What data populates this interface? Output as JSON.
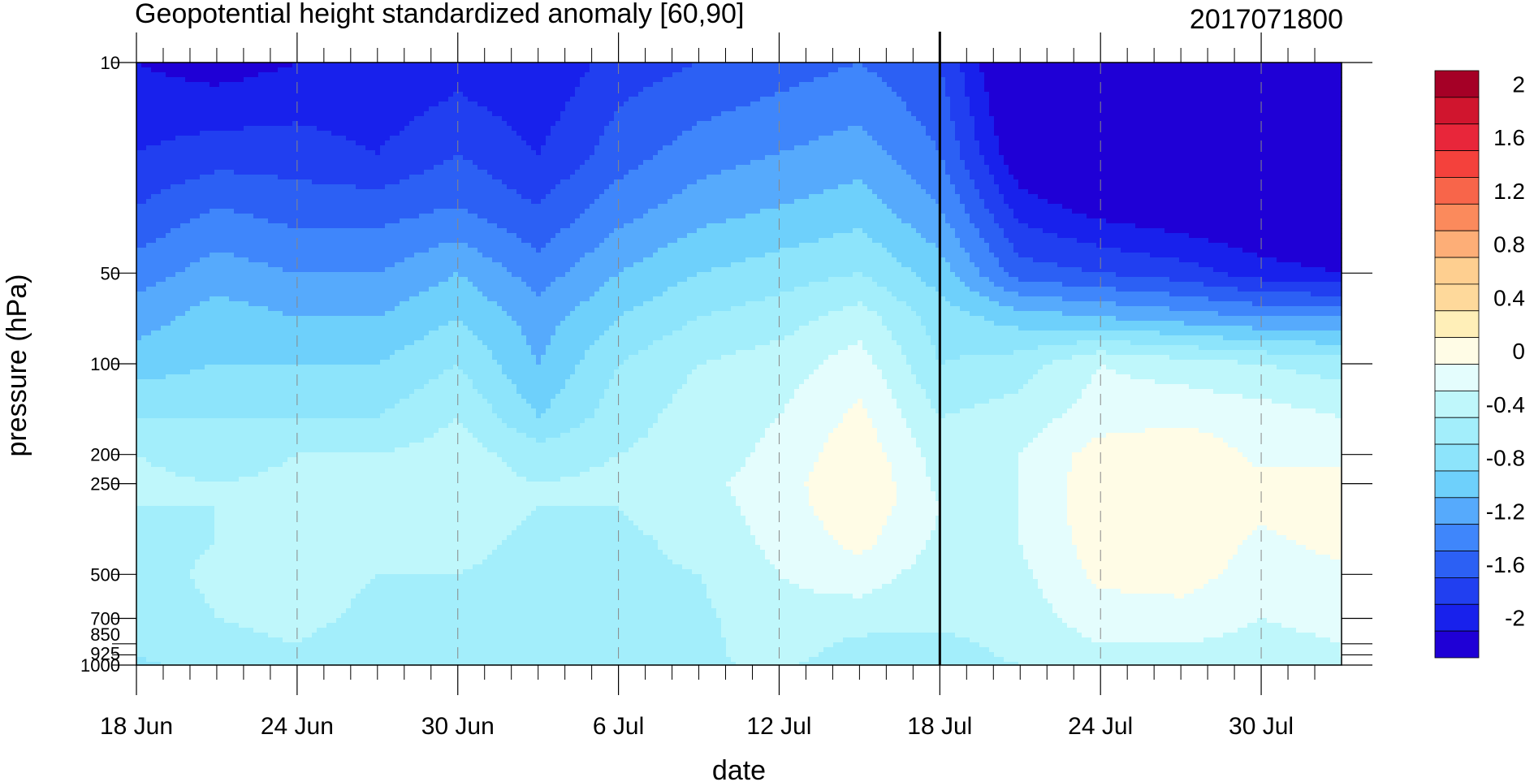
{
  "chart_data": {
    "type": "heatmap",
    "title": "Geopotential height standardized anomaly [60,90]",
    "subtitle": "2017071800",
    "xlabel": "date",
    "ylabel": "pressure (hPa)",
    "x_ticks": [
      "18 Jun",
      "24 Jun",
      "30 Jun",
      "6 Jul",
      "12 Jul",
      "18 Jul",
      "24 Jul",
      "30 Jul"
    ],
    "x_tick_days": [
      0,
      6,
      12,
      18,
      24,
      30,
      36,
      42
    ],
    "x_range_days": [
      0,
      45
    ],
    "forecast_start_day": 30,
    "y_scale": "log",
    "y_ticks": [
      "10",
      "50",
      "100",
      "200",
      "250",
      "500",
      "700",
      "850",
      "925",
      "1000"
    ],
    "y_tick_values": [
      10,
      50,
      100,
      200,
      250,
      500,
      700,
      850,
      925,
      1000
    ],
    "y_range": [
      1000,
      10
    ],
    "colorbar": {
      "labels": [
        "2",
        "1.6",
        "1.2",
        "0.8",
        "0.4",
        "0",
        "-0.4",
        "-0.8",
        "-1.2",
        "-1.6",
        "-2"
      ],
      "label_values": [
        2,
        1.6,
        1.2,
        0.8,
        0.4,
        0,
        -0.4,
        -0.8,
        -1.2,
        -1.6,
        -2
      ],
      "bins_top_to_bottom": [
        {
          "min": 2.0,
          "max": null,
          "color": "#a50026"
        },
        {
          "min": 1.8,
          "max": 2.0,
          "color": "#d0152e"
        },
        {
          "min": 1.6,
          "max": 1.8,
          "color": "#e8263a"
        },
        {
          "min": 1.4,
          "max": 1.6,
          "color": "#f4413c"
        },
        {
          "min": 1.2,
          "max": 1.4,
          "color": "#f8654a"
        },
        {
          "min": 1.0,
          "max": 1.2,
          "color": "#fb8a5c"
        },
        {
          "min": 0.8,
          "max": 1.0,
          "color": "#fdae77"
        },
        {
          "min": 0.6,
          "max": 0.8,
          "color": "#fecf90"
        },
        {
          "min": 0.4,
          "max": 0.6,
          "color": "#fed99b"
        },
        {
          "min": 0.2,
          "max": 0.4,
          "color": "#ffefb8"
        },
        {
          "min": 0.0,
          "max": 0.2,
          "color": "#fffce6"
        },
        {
          "min": -0.2,
          "max": 0.0,
          "color": "#e4fdfd"
        },
        {
          "min": -0.4,
          "max": -0.2,
          "color": "#bff7fb"
        },
        {
          "min": -0.6,
          "max": -0.4,
          "color": "#a3eefb"
        },
        {
          "min": -0.8,
          "max": -0.6,
          "color": "#8de4fb"
        },
        {
          "min": -1.0,
          "max": -0.8,
          "color": "#6ed0fb"
        },
        {
          "min": -1.2,
          "max": -1.0,
          "color": "#56aafc"
        },
        {
          "min": -1.4,
          "max": -1.2,
          "color": "#3f86fb"
        },
        {
          "min": -1.6,
          "max": -1.4,
          "color": "#2c60f4"
        },
        {
          "min": -1.8,
          "max": -1.6,
          "color": "#213ff0"
        },
        {
          "min": -2.0,
          "max": -1.8,
          "color": "#1821ec"
        },
        {
          "min": null,
          "max": -2.0,
          "color": "#1f00d6"
        }
      ]
    },
    "field_grid": {
      "pressure_levels_hPa": [
        10,
        20,
        30,
        50,
        70,
        100,
        150,
        200,
        250,
        300,
        400,
        500,
        700,
        850,
        925,
        1000
      ],
      "days": [
        0,
        3,
        6,
        9,
        12,
        15,
        18,
        21,
        24,
        27,
        30,
        33,
        36,
        39,
        42,
        45
      ],
      "rows": [
        [
          -2.0,
          -2.1,
          -2.0,
          -2.0,
          -1.9,
          -2.0,
          -1.7,
          -1.6,
          -1.5,
          -1.4,
          -1.6,
          -2.4,
          -2.6,
          -2.7,
          -2.8,
          -2.8
        ],
        [
          -1.8,
          -1.7,
          -1.7,
          -1.8,
          -1.6,
          -1.8,
          -1.5,
          -1.3,
          -1.2,
          -1.1,
          -1.4,
          -2.2,
          -2.4,
          -2.5,
          -2.6,
          -2.7
        ],
        [
          -1.6,
          -1.4,
          -1.5,
          -1.5,
          -1.4,
          -1.6,
          -1.3,
          -1.1,
          -1.0,
          -0.9,
          -1.2,
          -1.9,
          -2.1,
          -2.2,
          -2.3,
          -2.4
        ],
        [
          -1.3,
          -1.1,
          -1.2,
          -1.2,
          -1.0,
          -1.3,
          -1.0,
          -0.8,
          -0.7,
          -0.6,
          -0.9,
          -1.5,
          -1.6,
          -1.7,
          -1.9,
          -2.0
        ],
        [
          -1.1,
          -0.9,
          -1.0,
          -1.0,
          -0.8,
          -1.1,
          -0.8,
          -0.6,
          -0.5,
          -0.3,
          -0.7,
          -0.9,
          -1.0,
          -1.1,
          -1.2,
          -1.2
        ],
        [
          -0.9,
          -0.8,
          -0.8,
          -0.8,
          -0.6,
          -1.0,
          -0.6,
          -0.4,
          -0.3,
          -0.1,
          -0.6,
          -0.5,
          -0.2,
          -0.3,
          -0.4,
          -0.5
        ],
        [
          -0.6,
          -0.6,
          -0.6,
          -0.6,
          -0.4,
          -0.8,
          -0.5,
          -0.3,
          -0.2,
          0.05,
          -0.4,
          -0.3,
          -0.1,
          -0.05,
          -0.1,
          -0.2
        ],
        [
          -0.4,
          -0.5,
          -0.4,
          -0.4,
          -0.3,
          -0.5,
          -0.4,
          -0.3,
          -0.15,
          0.15,
          -0.3,
          -0.2,
          0.1,
          0.15,
          -0.05,
          -0.1
        ],
        [
          -0.35,
          -0.4,
          -0.35,
          -0.35,
          -0.3,
          -0.4,
          -0.35,
          -0.25,
          -0.1,
          0.2,
          -0.25,
          -0.2,
          0.15,
          0.2,
          0.05,
          0.1
        ],
        [
          -0.4,
          -0.4,
          -0.35,
          -0.35,
          -0.3,
          -0.4,
          -0.4,
          -0.3,
          -0.1,
          0.15,
          -0.2,
          -0.2,
          0.15,
          0.2,
          0.05,
          0.1
        ],
        [
          -0.45,
          -0.4,
          -0.3,
          -0.4,
          -0.35,
          -0.45,
          -0.45,
          -0.35,
          -0.15,
          0.05,
          -0.25,
          -0.2,
          0.1,
          0.15,
          -0.05,
          0.05
        ],
        [
          -0.5,
          -0.35,
          -0.3,
          -0.4,
          -0.4,
          -0.45,
          -0.45,
          -0.4,
          -0.2,
          -0.1,
          -0.3,
          -0.25,
          0.05,
          0.1,
          -0.1,
          -0.05
        ],
        [
          -0.55,
          -0.4,
          -0.35,
          -0.45,
          -0.45,
          -0.45,
          -0.45,
          -0.45,
          -0.25,
          -0.3,
          -0.35,
          -0.3,
          -0.1,
          -0.1,
          -0.2,
          -0.15
        ],
        [
          -0.6,
          -0.45,
          -0.4,
          -0.5,
          -0.45,
          -0.45,
          -0.45,
          -0.45,
          -0.3,
          -0.45,
          -0.45,
          -0.35,
          -0.2,
          -0.2,
          -0.25,
          -0.2
        ],
        [
          -0.6,
          -0.45,
          -0.45,
          -0.5,
          -0.5,
          -0.45,
          -0.5,
          -0.45,
          -0.3,
          -0.5,
          -0.5,
          -0.35,
          -0.25,
          -0.25,
          -0.25,
          -0.2
        ],
        [
          -0.65,
          -0.5,
          -0.45,
          -0.5,
          -0.5,
          -0.45,
          -0.5,
          -0.45,
          -0.35,
          -0.55,
          -0.5,
          -0.4,
          -0.3,
          -0.3,
          -0.3,
          -0.25
        ]
      ]
    },
    "legend": "right",
    "grid": "dashed vertical lines at date ticks"
  }
}
